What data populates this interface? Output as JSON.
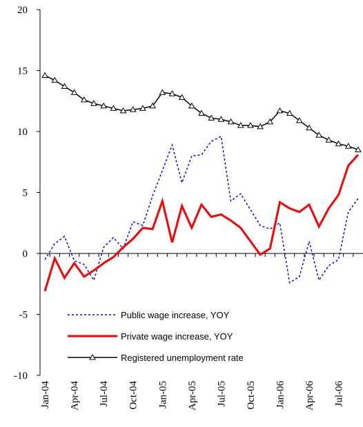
{
  "chart_data": {
    "type": "line",
    "categories": [
      "Jan-04",
      null,
      null,
      "Apr-04",
      null,
      null,
      "Jul-04",
      null,
      null,
      "Oct-04",
      null,
      null,
      "Jan-05",
      null,
      null,
      "Apr-05",
      null,
      null,
      "Jul-05",
      null,
      null,
      "Oct-05",
      null,
      null,
      "Jan-06",
      null,
      null,
      "Apr-06",
      null,
      null,
      "Jul-06",
      null,
      null
    ],
    "series": [
      {
        "name": "Public wage increase, YOY",
        "color": "#0000ff",
        "style": "dashed",
        "values": [
          -0.5,
          0.8,
          1.4,
          -0.6,
          -0.9,
          -2.2,
          0.5,
          1.3,
          0.4,
          2.6,
          2.3,
          4.7,
          6.8,
          8.9,
          5.8,
          8.0,
          8.1,
          9.2,
          9.6,
          4.3,
          4.9,
          3.6,
          2.3,
          2.0,
          2.5,
          -2.4,
          -1.9,
          1.0,
          -2.2,
          -1.0,
          -0.5,
          3.4,
          4.5
        ]
      },
      {
        "name": "Private wage increase, YOY",
        "color": "#ff0000",
        "style": "thick",
        "values": [
          -3.1,
          -0.4,
          -2.0,
          -0.8,
          -1.9,
          -1.4,
          -0.8,
          -0.3,
          0.5,
          1.2,
          2.1,
          2.0,
          4.3,
          0.9,
          3.9,
          2.1,
          4.0,
          3.0,
          3.2,
          2.7,
          2.1,
          1.0,
          -0.1,
          0.4,
          4.2,
          3.7,
          3.4,
          4.0,
          2.2,
          3.7,
          4.8,
          7.2,
          8.1
        ]
      },
      {
        "name": "Registered unemployment rate",
        "color": "#000000",
        "style": "markers",
        "values": [
          14.6,
          14.2,
          13.7,
          13.2,
          12.6,
          12.3,
          12.1,
          11.9,
          11.7,
          11.8,
          11.9,
          12.1,
          13.2,
          13.1,
          12.8,
          12.1,
          11.5,
          11.1,
          11.0,
          10.8,
          10.5,
          10.5,
          10.4,
          10.8,
          11.7,
          11.5,
          10.9,
          10.3,
          9.7,
          9.3,
          9.0,
          8.8,
          8.5
        ]
      }
    ],
    "ylim": [
      -10,
      20
    ],
    "yticks": [
      -10,
      -5,
      0,
      5,
      10,
      15,
      20
    ],
    "grid": false,
    "legend": "lower left"
  }
}
